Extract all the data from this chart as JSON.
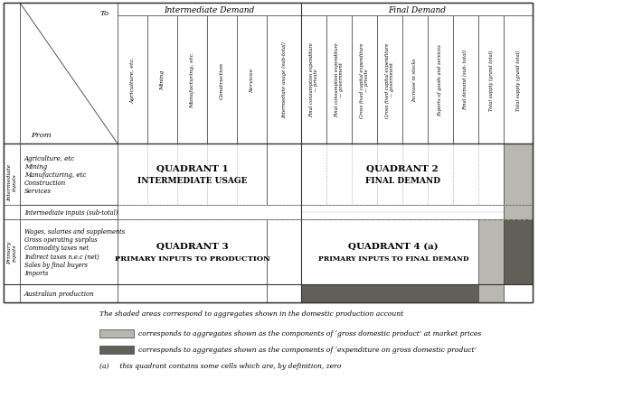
{
  "col_header_intermediate": "Intermediate Demand",
  "col_header_final": "Final Demand",
  "intermediate_cols": [
    "Agriculture, etc.",
    "Mining",
    "Manufacturing, etc.",
    "Construction",
    "Services"
  ],
  "final_cols_header": [
    "Intermediate usage (sub-total)",
    "Final consumption expenditure\n— private",
    "Final consumption expenditure\n— government",
    "Gross fixed capital expenditure\n— private",
    "Gross fixed capital expenditure\n— government",
    "Increase in stocks",
    "Exports of goods and services",
    "Final demand (sub- total)",
    "Total supply (grand total)"
  ],
  "intermediate_rows": [
    "Agriculture, etc",
    "Mining",
    "Manufacturing, etc",
    "Construction",
    "Services"
  ],
  "sub_total_row": "Intermediate inputs (sub-total)",
  "primary_rows": [
    "Wages, salaries and supplements",
    "Gross operating surplus",
    "Commodity taxes net",
    "Indirect taxes n.e.c (net)",
    "Sales by final buyers",
    "Imports"
  ],
  "last_row": "Australian production",
  "q1_line1": "QUADRANT 1",
  "q1_line2": "INTERMEDIATE USAGE",
  "q2_line1": "QUADRANT 2",
  "q2_line2": "FINAL DEMAND",
  "q3_line1": "QUADRANT 3",
  "q3_line2": "PRIMARY INPUTS TO PRODUCTION",
  "q4_line1": "QUADRANT 4 (a)",
  "q4_line2": "PRIMARY INPUTS TO FINAL DEMAND",
  "footnote_main": "The shaded areas correspond to aggregates shown in the domestic production account",
  "footnote1": "corresponds to aggregates shown as the components of ‘gross domestic product’ at market prices",
  "footnote2": "corresponds to aggregates shown as the components of ‘expenditure on gross domestic product’",
  "footnote3": "(a)     this quadrant contains some cells which are, by definition, zero",
  "light_gray": "#b8b8b0",
  "dark_gray": "#606058",
  "ec": "#444444"
}
